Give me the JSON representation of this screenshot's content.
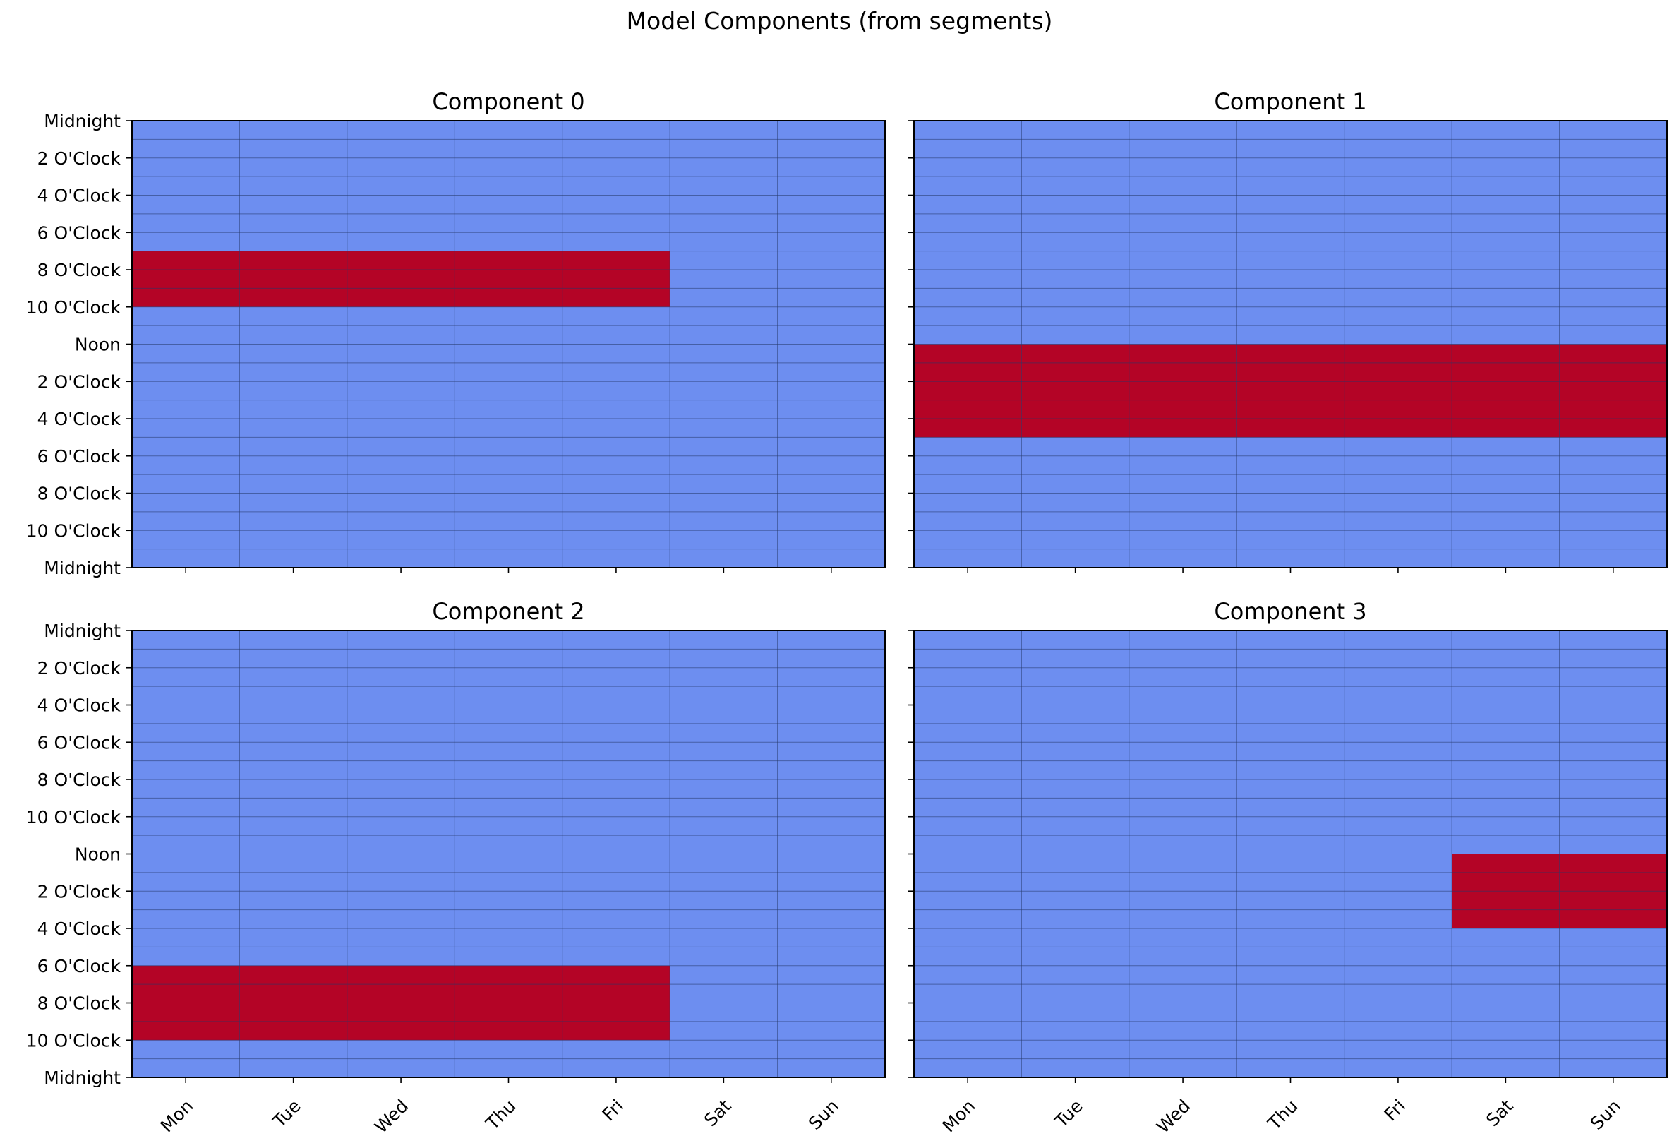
{
  "suptitle": "Model Components (from segments)",
  "colors": {
    "low": "#6d8ef0",
    "high": "#b40426",
    "grid": "#25386a"
  },
  "chart_data": [
    {
      "type": "heatmap",
      "title": "Component 0",
      "x_categories": [
        "Mon",
        "Tue",
        "Wed",
        "Thu",
        "Fri",
        "Sat",
        "Sun"
      ],
      "y_tick_labels": [
        "Midnight",
        "2 O'Clock",
        "4 O'Clock",
        "6 O'Clock",
        "8 O'Clock",
        "10 O'Clock",
        "Noon",
        "2 O'Clock",
        "4 O'Clock",
        "6 O'Clock",
        "8 O'Clock",
        "10 O'Clock",
        "Midnight"
      ],
      "y_range_hours": [
        0,
        24
      ],
      "rows_per_day": 24,
      "high_blocks": [
        {
          "days": [
            "Mon",
            "Tue",
            "Wed",
            "Thu",
            "Fri"
          ],
          "hour_start": 7,
          "hour_end": 10
        }
      ],
      "show_x_labels": false,
      "show_y_labels": true
    },
    {
      "type": "heatmap",
      "title": "Component 1",
      "x_categories": [
        "Mon",
        "Tue",
        "Wed",
        "Thu",
        "Fri",
        "Sat",
        "Sun"
      ],
      "y_tick_labels": [
        "Midnight",
        "2 O'Clock",
        "4 O'Clock",
        "6 O'Clock",
        "8 O'Clock",
        "10 O'Clock",
        "Noon",
        "2 O'Clock",
        "4 O'Clock",
        "6 O'Clock",
        "8 O'Clock",
        "10 O'Clock",
        "Midnight"
      ],
      "y_range_hours": [
        0,
        24
      ],
      "rows_per_day": 24,
      "high_blocks": [
        {
          "days": [
            "Mon",
            "Tue",
            "Wed",
            "Thu",
            "Fri",
            "Sat",
            "Sun"
          ],
          "hour_start": 12,
          "hour_end": 17
        }
      ],
      "show_x_labels": false,
      "show_y_labels": false
    },
    {
      "type": "heatmap",
      "title": "Component 2",
      "x_categories": [
        "Mon",
        "Tue",
        "Wed",
        "Thu",
        "Fri",
        "Sat",
        "Sun"
      ],
      "y_tick_labels": [
        "Midnight",
        "2 O'Clock",
        "4 O'Clock",
        "6 O'Clock",
        "8 O'Clock",
        "10 O'Clock",
        "Noon",
        "2 O'Clock",
        "4 O'Clock",
        "6 O'Clock",
        "8 O'Clock",
        "10 O'Clock",
        "Midnight"
      ],
      "y_range_hours": [
        0,
        24
      ],
      "rows_per_day": 24,
      "high_blocks": [
        {
          "days": [
            "Mon",
            "Tue",
            "Wed",
            "Thu",
            "Fri"
          ],
          "hour_start": 18,
          "hour_end": 22
        }
      ],
      "show_x_labels": true,
      "show_y_labels": true
    },
    {
      "type": "heatmap",
      "title": "Component 3",
      "x_categories": [
        "Mon",
        "Tue",
        "Wed",
        "Thu",
        "Fri",
        "Sat",
        "Sun"
      ],
      "y_tick_labels": [
        "Midnight",
        "2 O'Clock",
        "4 O'Clock",
        "6 O'Clock",
        "8 O'Clock",
        "10 O'Clock",
        "Noon",
        "2 O'Clock",
        "4 O'Clock",
        "6 O'Clock",
        "8 O'Clock",
        "10 O'Clock",
        "Midnight"
      ],
      "y_range_hours": [
        0,
        24
      ],
      "rows_per_day": 24,
      "high_blocks": [
        {
          "days": [
            "Sat",
            "Sun"
          ],
          "hour_start": 12,
          "hour_end": 16
        }
      ],
      "show_x_labels": true,
      "show_y_labels": false
    }
  ]
}
